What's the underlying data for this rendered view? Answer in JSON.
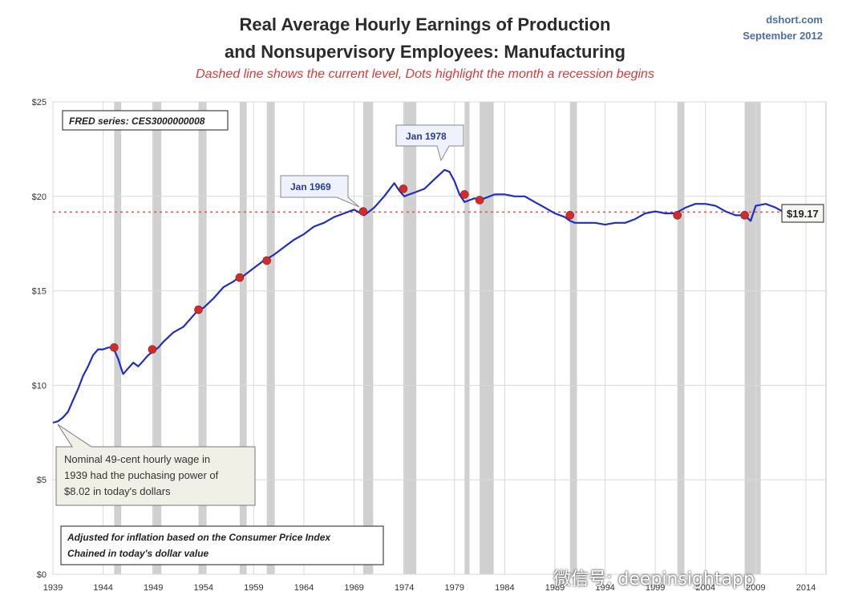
{
  "header": {
    "title_line1": "Real Average Hourly Earnings of Production",
    "title_line2": "and Nonsupervisory Employees: Manufacturing",
    "subtitle": "Dashed line shows the current level, Dots highlight the month a recession begins",
    "brand_site": "dshort.com",
    "brand_date": "September 2012"
  },
  "colors": {
    "series": "#1f2fbf",
    "dots": "#d22b2b",
    "current_line": "#e05050",
    "recession_band": "#c8c8c8",
    "grid": "#d9d9d9",
    "title": "#2b2b2b",
    "subtitle": "#d63a3a",
    "brand": "#4a6ea8"
  },
  "annotations": {
    "fred_series": "FRED series: CES3000000008",
    "peak_1969": "Jan 1969",
    "peak_1978": "Jan 1978",
    "current_value_label": "$19.17",
    "nominal_note_line1": "Nominal 49-cent hourly wage in",
    "nominal_note_line2": "1939  had the puchasing power of",
    "nominal_note_line3": "$8.02  in today's dollars",
    "adjusted_note_line1": "Adjusted for inflation based on the Consumer Price Index",
    "adjusted_note_line2": "Chained in today's dollar value"
  },
  "watermark": "微信号: deepinsightapp",
  "chart_data": {
    "type": "line",
    "title": "Real Average Hourly Earnings of Production and Nonsupervisory Employees: Manufacturing",
    "subtitle": "Dashed line shows the current level, Dots highlight the month a recession begins",
    "xlabel": "",
    "ylabel": "",
    "xlim": [
      1939,
      2016
    ],
    "ylim": [
      0,
      25
    ],
    "x_ticks": [
      1939,
      1944,
      1949,
      1954,
      1959,
      1964,
      1969,
      1974,
      1979,
      1984,
      1989,
      1994,
      1999,
      2004,
      2009,
      2014
    ],
    "y_ticks": [
      0,
      5,
      10,
      15,
      20,
      25
    ],
    "y_tick_labels": [
      "$0",
      "$5",
      "$10",
      "$15",
      "$20",
      "$25"
    ],
    "grid": true,
    "current_level": 19.17,
    "series": [
      {
        "x": [
          1939.0,
          1939.5,
          1940.0,
          1940.5,
          1941.0,
          1941.5,
          1942.0,
          1942.5,
          1943.0,
          1943.5,
          1944.0,
          1944.5,
          1945.0,
          1945.5,
          1945.8,
          1946.0,
          1946.5,
          1947.0,
          1947.5,
          1948.0,
          1948.5,
          1949.0,
          1949.5,
          1950.0,
          1951.0,
          1952.0,
          1953.0,
          1953.5,
          1954.0,
          1955.0,
          1956.0,
          1957.0,
          1957.5,
          1958.0,
          1959.0,
          1960.0,
          1961.0,
          1962.0,
          1963.0,
          1964.0,
          1965.0,
          1966.0,
          1967.0,
          1968.0,
          1969.0,
          1970.0,
          1970.5,
          1971.0,
          1972.0,
          1973.0,
          1973.5,
          1974.0,
          1974.5,
          1975.0,
          1976.0,
          1977.0,
          1978.0,
          1978.5,
          1979.0,
          1979.5,
          1980.0,
          1980.5,
          1981.0,
          1981.5,
          1982.0,
          1983.0,
          1984.0,
          1985.0,
          1986.0,
          1987.0,
          1988.0,
          1989.0,
          1990.0,
          1990.5,
          1991.0,
          1992.0,
          1993.0,
          1994.0,
          1995.0,
          1996.0,
          1997.0,
          1998.0,
          1999.0,
          2000.0,
          2001.0,
          2002.0,
          2003.0,
          2004.0,
          2005.0,
          2006.0,
          2007.0,
          2007.9,
          2008.5,
          2009.0,
          2010.0,
          2011.0,
          2012.0,
          2012.7
        ],
        "values": [
          8.02,
          8.1,
          8.3,
          8.6,
          9.2,
          9.8,
          10.5,
          11.0,
          11.6,
          11.9,
          11.9,
          12.0,
          12.0,
          11.4,
          10.9,
          10.6,
          10.9,
          11.2,
          11.0,
          11.3,
          11.6,
          11.8,
          12.0,
          12.3,
          12.8,
          13.1,
          13.7,
          14.0,
          14.1,
          14.6,
          15.2,
          15.5,
          15.7,
          15.8,
          16.2,
          16.6,
          16.9,
          17.3,
          17.7,
          18.0,
          18.4,
          18.6,
          18.9,
          19.1,
          19.3,
          19.0,
          19.2,
          19.4,
          20.0,
          20.7,
          20.3,
          20.0,
          20.1,
          20.2,
          20.4,
          20.9,
          21.4,
          21.3,
          20.8,
          20.1,
          19.7,
          19.8,
          19.9,
          19.8,
          19.9,
          20.1,
          20.1,
          20.0,
          20.0,
          19.7,
          19.4,
          19.1,
          18.9,
          18.7,
          18.6,
          18.6,
          18.6,
          18.5,
          18.6,
          18.6,
          18.8,
          19.1,
          19.2,
          19.1,
          19.1,
          19.4,
          19.6,
          19.6,
          19.5,
          19.2,
          19.0,
          19.0,
          18.7,
          19.5,
          19.6,
          19.4,
          19.1,
          19.17
        ]
      }
    ],
    "recessions": [
      [
        1945.1,
        1945.8
      ],
      [
        1948.9,
        1949.8
      ],
      [
        1953.5,
        1954.3
      ],
      [
        1957.6,
        1958.3
      ],
      [
        1960.3,
        1961.1
      ],
      [
        1969.9,
        1970.9
      ],
      [
        1973.9,
        1975.2
      ],
      [
        1980.0,
        1980.5
      ],
      [
        1981.5,
        1982.9
      ],
      [
        1990.5,
        1991.2
      ],
      [
        2001.2,
        2001.9
      ],
      [
        2007.9,
        2009.5
      ]
    ],
    "recession_start_dots": [
      {
        "x": 1945.1,
        "y": 12.0
      },
      {
        "x": 1948.9,
        "y": 11.9
      },
      {
        "x": 1953.5,
        "y": 14.0
      },
      {
        "x": 1957.6,
        "y": 15.7
      },
      {
        "x": 1960.3,
        "y": 16.6
      },
      {
        "x": 1969.9,
        "y": 19.2
      },
      {
        "x": 1973.9,
        "y": 20.4
      },
      {
        "x": 1980.0,
        "y": 20.1
      },
      {
        "x": 1981.5,
        "y": 19.8
      },
      {
        "x": 1990.5,
        "y": 19.0
      },
      {
        "x": 2001.2,
        "y": 19.0
      },
      {
        "x": 2007.9,
        "y": 19.0
      }
    ]
  }
}
